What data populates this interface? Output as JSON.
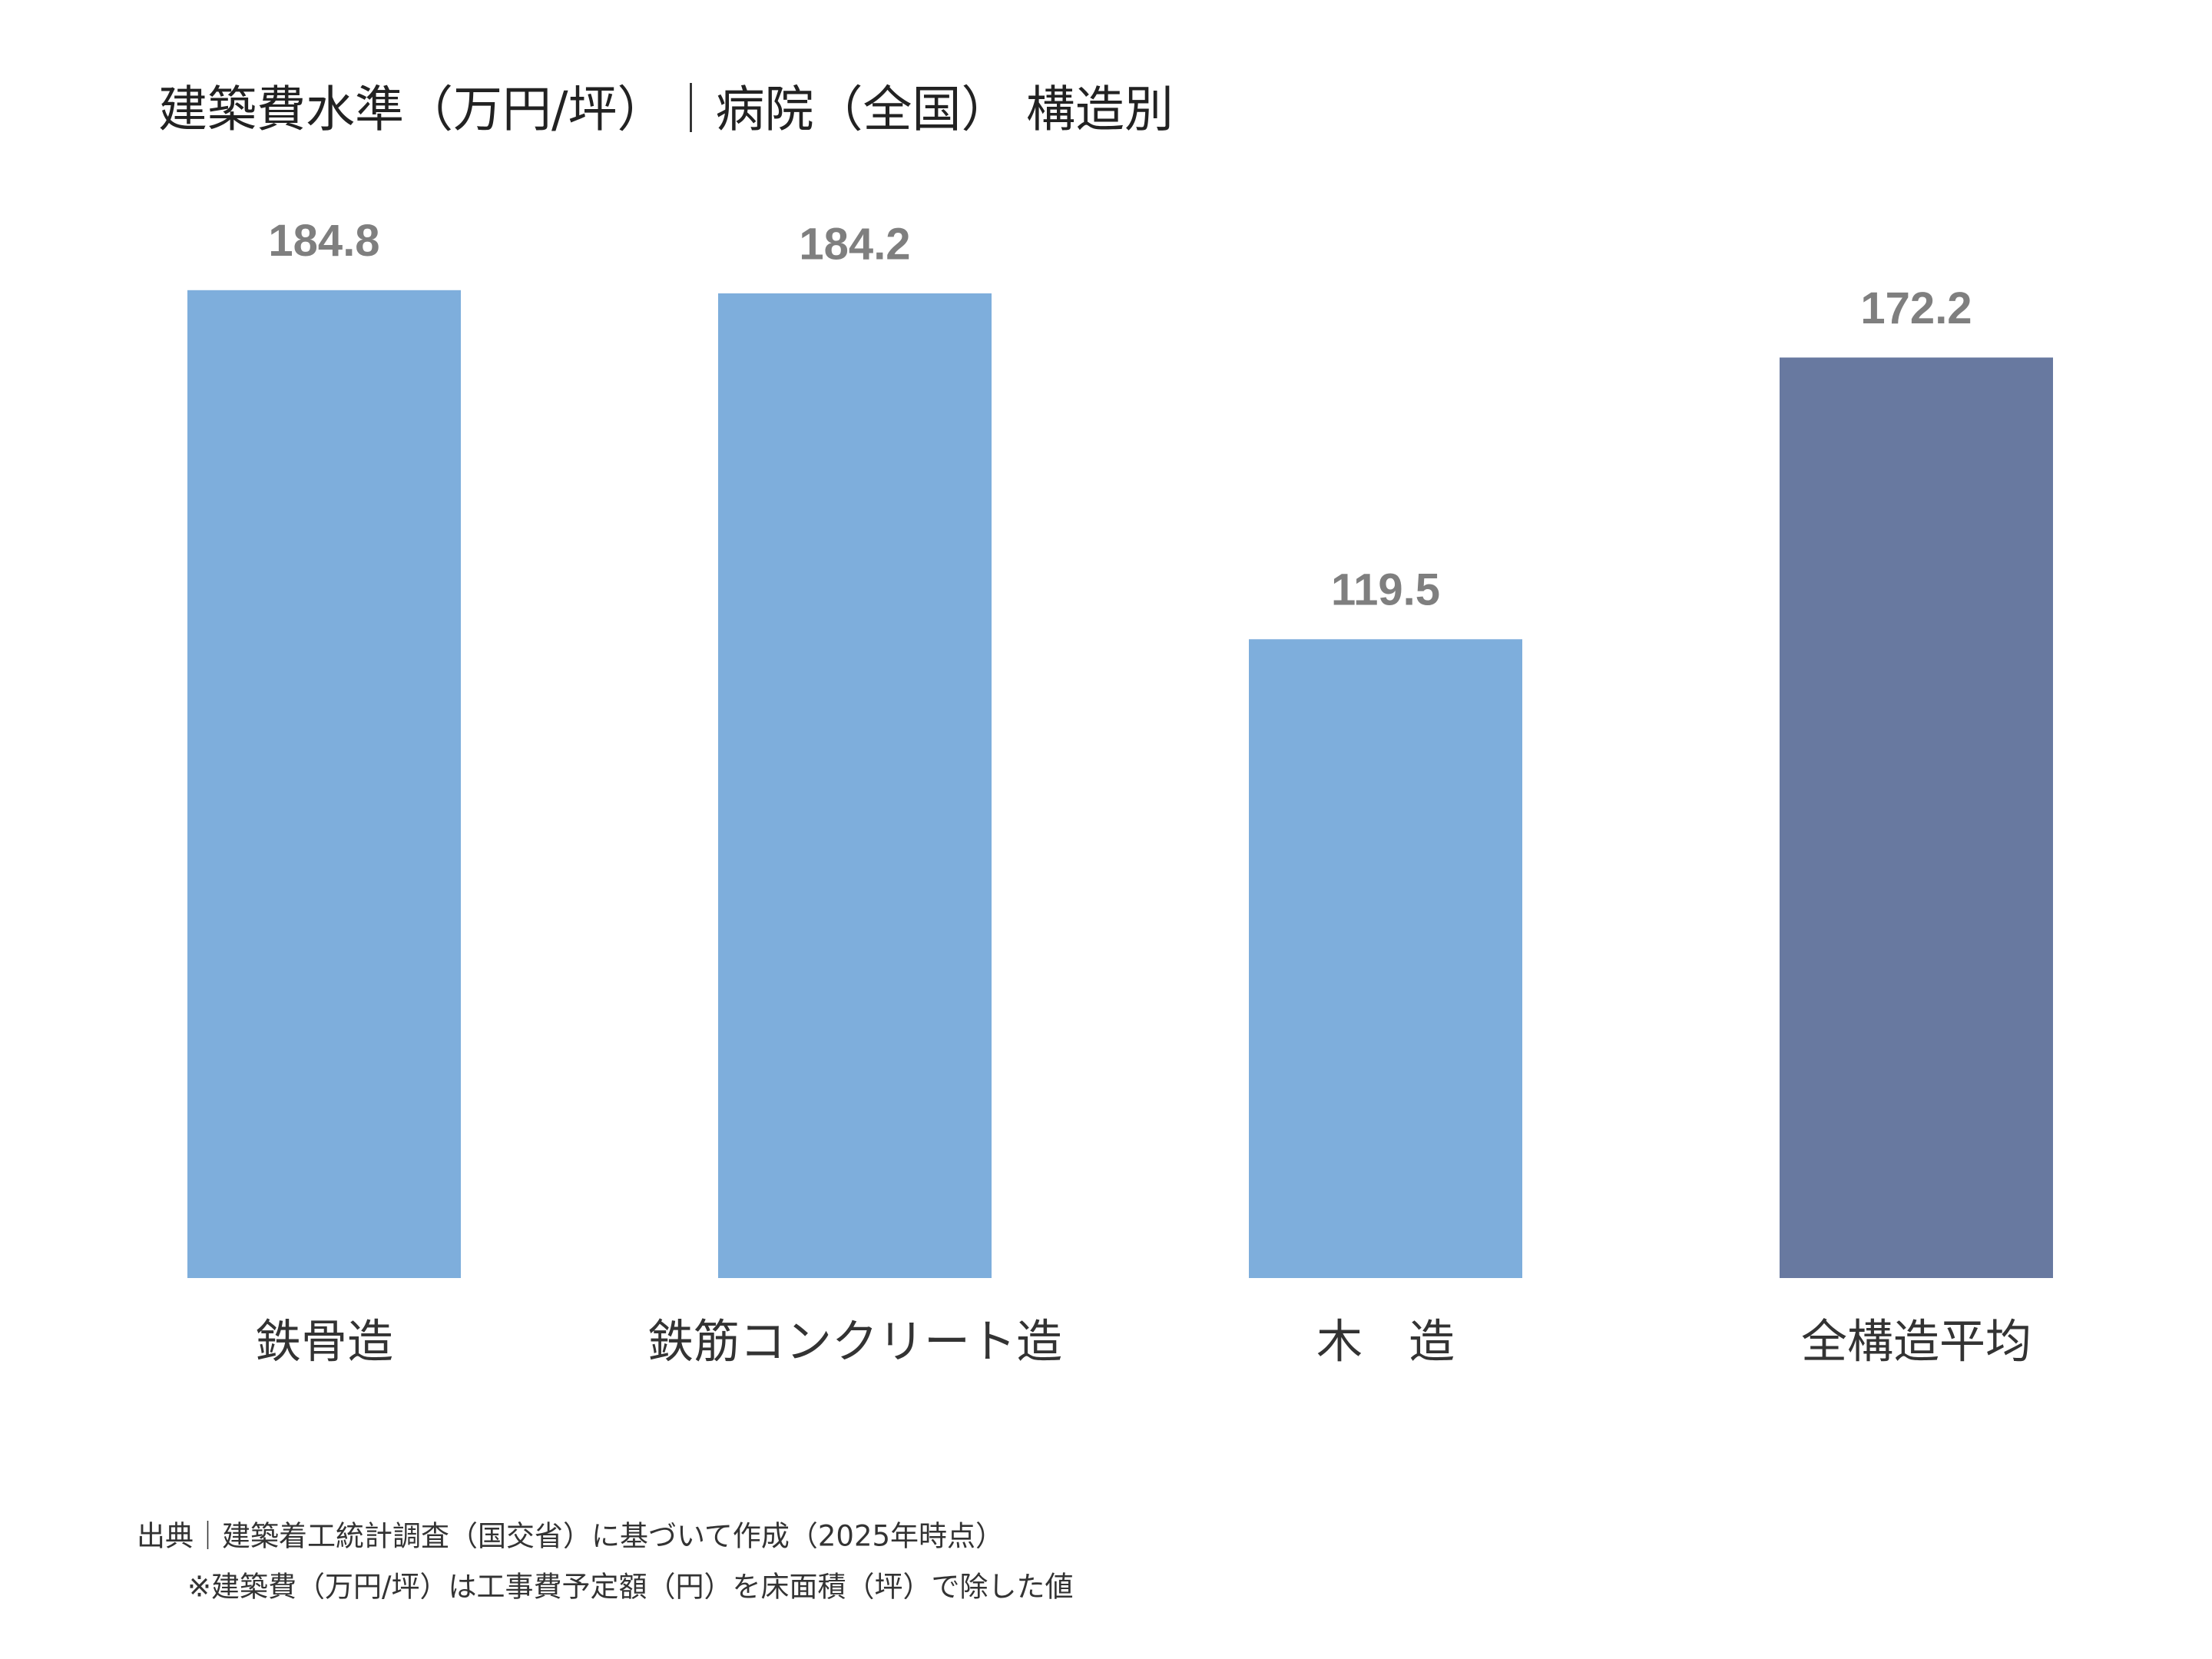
{
  "chart_data": {
    "type": "bar",
    "title": "建築費水準（万円/坪）｜病院（全国） 構造別",
    "categories": [
      "鉄骨造",
      "鉄筋コンクリート造",
      "木　造",
      "全構造平均"
    ],
    "values": [
      184.8,
      184.2,
      119.5,
      172.2
    ],
    "colors": [
      "#7eaedc",
      "#7eaedc",
      "#7eaedc",
      "#6879a0"
    ],
    "footnotes": [
      "出典｜建築着工統計調査（国交省）に基づいて作成（2025年時点）",
      "※建築費（万円/坪）は工事費予定額（円）を床面積（坪）で除した値"
    ]
  }
}
